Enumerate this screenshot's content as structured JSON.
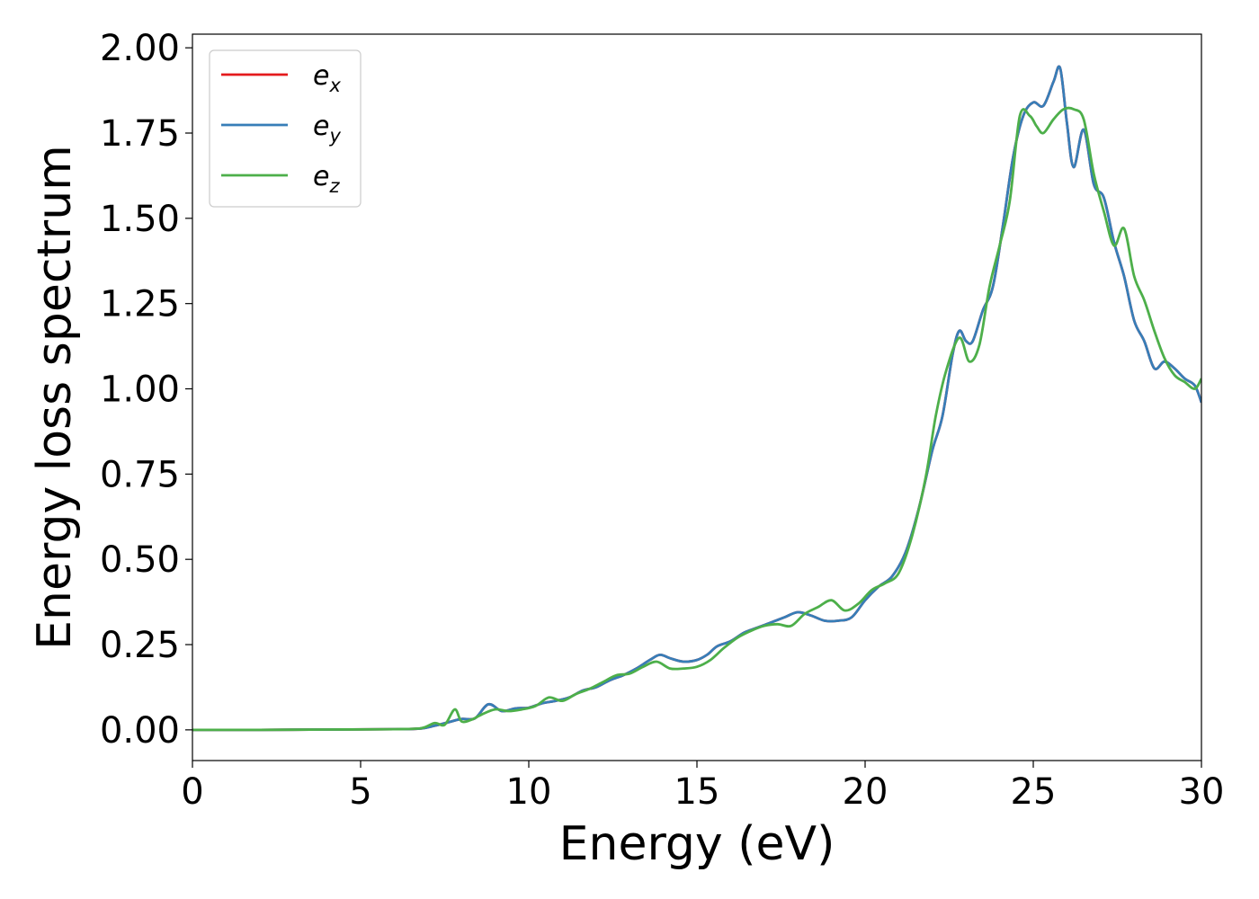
{
  "chart_data": {
    "type": "line",
    "xlabel": "Energy (eV)",
    "ylabel": "Energy loss spectrum",
    "xlim": [
      0,
      30
    ],
    "ylim": [
      -0.09,
      2.04
    ],
    "xticks": [
      0,
      5,
      10,
      15,
      20,
      25,
      30
    ],
    "xtick_labels": [
      "0",
      "5",
      "10",
      "15",
      "20",
      "25",
      "30"
    ],
    "yticks": [
      0,
      0.25,
      0.5,
      0.75,
      1.0,
      1.25,
      1.5,
      1.75,
      2.0
    ],
    "ytick_labels": [
      "0.00",
      "0.25",
      "0.50",
      "0.75",
      "1.00",
      "1.25",
      "1.50",
      "1.75",
      "2.00"
    ],
    "grid": false,
    "legend_position": "top-left",
    "series": [
      {
        "name": "e",
        "subscript": "x",
        "color": "#e41a1c",
        "x": [
          0,
          2,
          4,
          6,
          6.8,
          7.2,
          7.6,
          8.0,
          8.4,
          8.8,
          9.2,
          9.6,
          10.0,
          10.4,
          10.8,
          11.2,
          11.6,
          12.0,
          12.4,
          12.8,
          13.2,
          13.6,
          13.9,
          14.2,
          14.6,
          15.0,
          15.3,
          15.6,
          16.0,
          16.4,
          16.8,
          17.2,
          17.6,
          18.0,
          18.4,
          18.8,
          19.2,
          19.6,
          20.0,
          20.4,
          20.8,
          21.2,
          21.6,
          22.0,
          22.3,
          22.6,
          22.8,
          23.0,
          23.2,
          23.5,
          23.8,
          24.1,
          24.4,
          24.7,
          25.0,
          25.3,
          25.6,
          25.8,
          26.0,
          26.2,
          26.5,
          26.8,
          27.1,
          27.4,
          27.7,
          28.0,
          28.3,
          28.6,
          28.9,
          29.2,
          29.5,
          29.8,
          30.0
        ],
        "y": [
          0,
          0,
          0.001,
          0.002,
          0.004,
          0.012,
          0.022,
          0.032,
          0.034,
          0.075,
          0.055,
          0.063,
          0.065,
          0.078,
          0.085,
          0.095,
          0.115,
          0.125,
          0.145,
          0.16,
          0.18,
          0.205,
          0.22,
          0.21,
          0.2,
          0.205,
          0.22,
          0.245,
          0.26,
          0.285,
          0.3,
          0.315,
          0.33,
          0.345,
          0.335,
          0.32,
          0.32,
          0.33,
          0.38,
          0.42,
          0.45,
          0.52,
          0.65,
          0.82,
          0.92,
          1.1,
          1.17,
          1.14,
          1.14,
          1.23,
          1.3,
          1.48,
          1.68,
          1.8,
          1.84,
          1.83,
          1.9,
          1.94,
          1.78,
          1.65,
          1.76,
          1.6,
          1.56,
          1.43,
          1.33,
          1.2,
          1.14,
          1.06,
          1.08,
          1.06,
          1.03,
          1.01,
          0.96
        ]
      },
      {
        "name": "e",
        "subscript": "y",
        "color": "#377eb8",
        "x": [
          0,
          2,
          4,
          6,
          6.8,
          7.2,
          7.6,
          8.0,
          8.4,
          8.8,
          9.2,
          9.6,
          10.0,
          10.4,
          10.8,
          11.2,
          11.6,
          12.0,
          12.4,
          12.8,
          13.2,
          13.6,
          13.9,
          14.2,
          14.6,
          15.0,
          15.3,
          15.6,
          16.0,
          16.4,
          16.8,
          17.2,
          17.6,
          18.0,
          18.4,
          18.8,
          19.2,
          19.6,
          20.0,
          20.4,
          20.8,
          21.2,
          21.6,
          22.0,
          22.3,
          22.6,
          22.8,
          23.0,
          23.2,
          23.5,
          23.8,
          24.1,
          24.4,
          24.7,
          25.0,
          25.3,
          25.6,
          25.8,
          26.0,
          26.2,
          26.5,
          26.8,
          27.1,
          27.4,
          27.7,
          28.0,
          28.3,
          28.6,
          28.9,
          29.2,
          29.5,
          29.8,
          30.0
        ],
        "y": [
          0,
          0,
          0.001,
          0.002,
          0.004,
          0.012,
          0.022,
          0.032,
          0.034,
          0.075,
          0.055,
          0.063,
          0.065,
          0.078,
          0.085,
          0.095,
          0.115,
          0.125,
          0.145,
          0.16,
          0.18,
          0.205,
          0.22,
          0.21,
          0.2,
          0.205,
          0.22,
          0.245,
          0.26,
          0.285,
          0.3,
          0.315,
          0.33,
          0.345,
          0.335,
          0.32,
          0.32,
          0.33,
          0.38,
          0.42,
          0.45,
          0.52,
          0.65,
          0.82,
          0.92,
          1.1,
          1.17,
          1.14,
          1.14,
          1.23,
          1.3,
          1.48,
          1.68,
          1.8,
          1.84,
          1.83,
          1.9,
          1.94,
          1.78,
          1.65,
          1.76,
          1.6,
          1.56,
          1.43,
          1.33,
          1.2,
          1.14,
          1.06,
          1.08,
          1.06,
          1.03,
          1.01,
          0.96
        ]
      },
      {
        "name": "e",
        "subscript": "z",
        "color": "#4daf4a",
        "x": [
          0,
          2,
          4,
          6,
          6.8,
          7.2,
          7.5,
          7.8,
          8.0,
          8.3,
          8.6,
          9.0,
          9.4,
          9.8,
          10.2,
          10.6,
          11.0,
          11.4,
          11.8,
          12.2,
          12.6,
          13.0,
          13.4,
          13.8,
          14.2,
          14.6,
          15.0,
          15.4,
          15.8,
          16.2,
          16.6,
          17.0,
          17.4,
          17.8,
          18.2,
          18.6,
          19.0,
          19.4,
          19.8,
          20.2,
          20.6,
          21.0,
          21.4,
          21.8,
          22.1,
          22.4,
          22.8,
          23.1,
          23.4,
          23.7,
          24.0,
          24.3,
          24.6,
          24.9,
          25.1,
          25.3,
          25.6,
          25.9,
          26.2,
          26.5,
          26.8,
          27.1,
          27.4,
          27.7,
          28.0,
          28.3,
          28.6,
          28.9,
          29.2,
          29.5,
          29.8,
          30.0
        ],
        "y": [
          0,
          0,
          0.001,
          0.002,
          0.005,
          0.02,
          0.015,
          0.06,
          0.025,
          0.03,
          0.045,
          0.06,
          0.055,
          0.06,
          0.07,
          0.095,
          0.085,
          0.105,
          0.12,
          0.14,
          0.16,
          0.165,
          0.185,
          0.2,
          0.18,
          0.18,
          0.185,
          0.205,
          0.24,
          0.27,
          0.29,
          0.305,
          0.31,
          0.305,
          0.34,
          0.36,
          0.38,
          0.35,
          0.37,
          0.41,
          0.43,
          0.46,
          0.57,
          0.74,
          0.92,
          1.05,
          1.15,
          1.08,
          1.13,
          1.3,
          1.42,
          1.55,
          1.8,
          1.8,
          1.77,
          1.75,
          1.79,
          1.82,
          1.82,
          1.79,
          1.63,
          1.52,
          1.42,
          1.47,
          1.33,
          1.26,
          1.17,
          1.09,
          1.04,
          1.02,
          1.0,
          1.03
        ]
      }
    ]
  }
}
